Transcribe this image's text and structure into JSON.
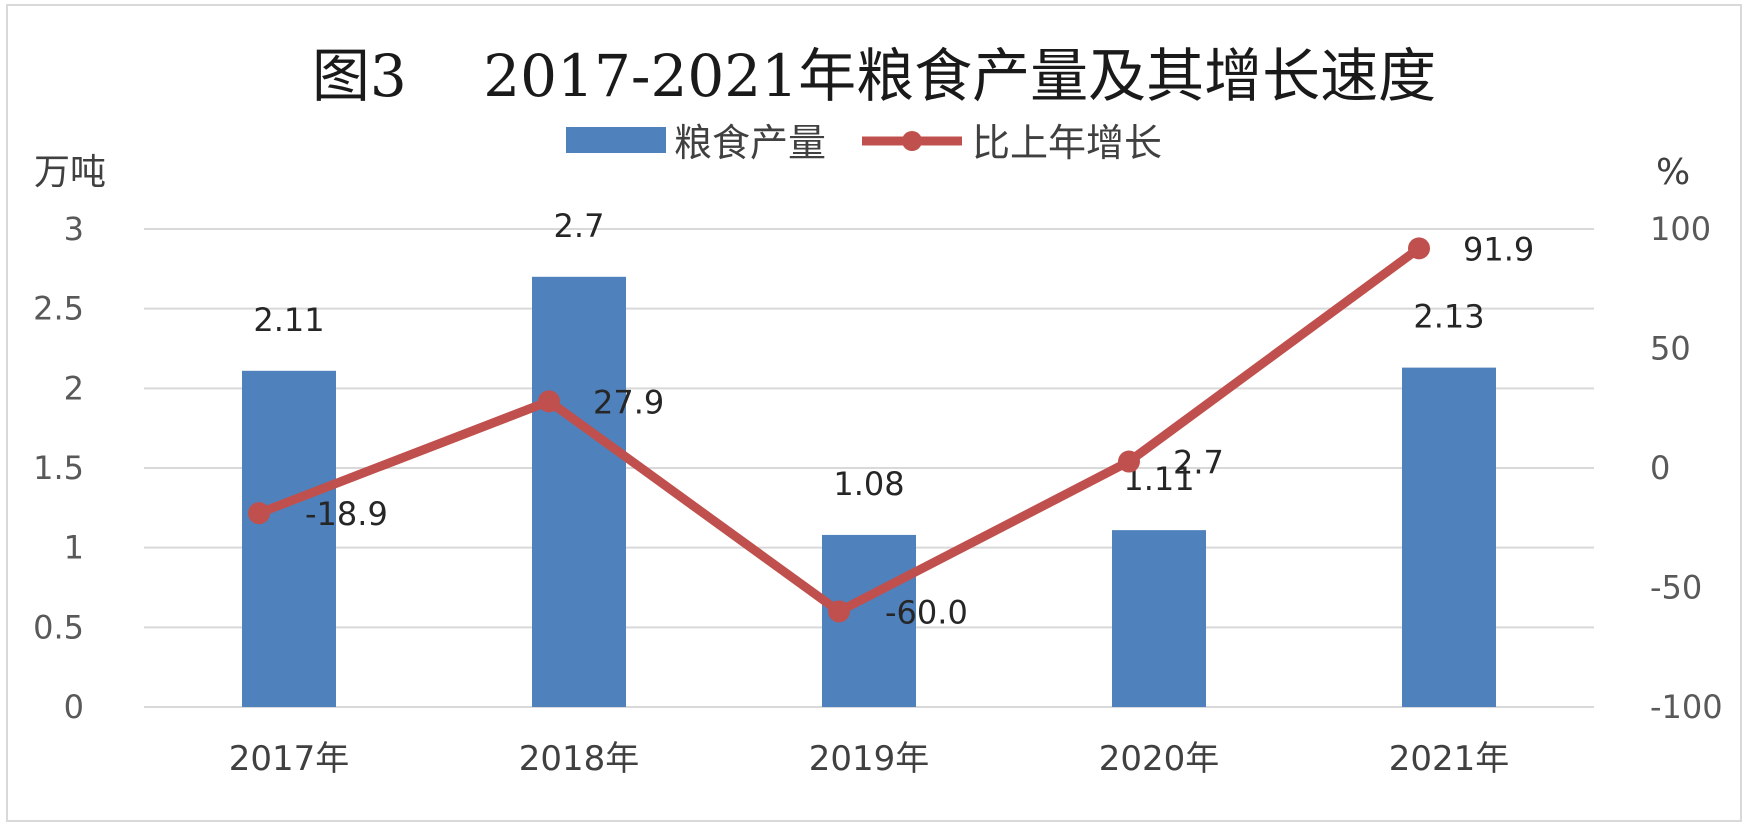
{
  "chart_data": {
    "type": "bar+line",
    "title": "图3　 2017-2021年粮食产量及其增长速度",
    "categories": [
      "2017年",
      "2018年",
      "2019年",
      "2020年",
      "2021年"
    ],
    "series": [
      {
        "name": "粮食产量",
        "type": "bar",
        "axis": "left",
        "color": "#4f81bd",
        "values": [
          2.11,
          2.7,
          1.08,
          1.11,
          2.13
        ],
        "labels": [
          "2.11",
          "2.7",
          "1.08",
          "1.11",
          "2.13"
        ]
      },
      {
        "name": "比上年增长",
        "type": "line",
        "axis": "right",
        "color": "#c0504d",
        "values": [
          -18.9,
          27.9,
          -60.0,
          2.7,
          91.9
        ],
        "labels": [
          "-18.9",
          "27.9",
          "-60.0",
          "2.7",
          "91.9"
        ]
      }
    ],
    "y_left": {
      "unit": "万吨",
      "min": 0,
      "max": 3,
      "ticks": [
        "0",
        "0.5",
        "1",
        "1.5",
        "2",
        "2.5",
        "3"
      ]
    },
    "y_right": {
      "unit": "%",
      "min": -100,
      "max": 100,
      "ticks": [
        "-100",
        "-50",
        "0",
        "50",
        "100"
      ]
    },
    "grid": true,
    "legend_position": "top"
  }
}
